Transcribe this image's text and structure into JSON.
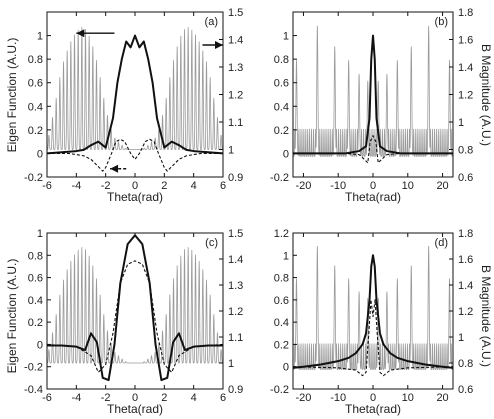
{
  "figure": {
    "ylabel_left": "Eigen Function (A.U.)",
    "ylabel_right": "B Magnitude (A.U.)"
  },
  "chart_data": [
    {
      "type": "line",
      "panel_label": "(a)",
      "xlabel": "Theta(rad)",
      "xlim": [
        -6,
        6
      ],
      "xticks": [
        -6,
        -4,
        -2,
        0,
        2,
        4,
        6
      ],
      "ylim_left": [
        -0.2,
        1.2
      ],
      "yticks_left": [
        -0.2,
        0,
        0.2,
        0.4,
        0.6,
        0.8,
        1
      ],
      "ylim_right": [
        0.9,
        1.5
      ],
      "yticks_right": [
        0.9,
        1,
        1.1,
        1.2,
        1.3,
        1.4,
        1.5
      ],
      "right_top_ticks_shown": false,
      "annotations": [
        {
          "type": "arrow",
          "from": [
            -1.4,
            1.02
          ],
          "to": [
            -4.0,
            1.02
          ],
          "axis": "left"
        },
        {
          "type": "arrow",
          "from": [
            4.6,
            1.38
          ],
          "to": [
            6.0,
            1.38
          ],
          "axis": "right"
        },
        {
          "type": "arrow",
          "from": [
            -0.6,
            -0.13
          ],
          "to": [
            -1.7,
            -0.13
          ],
          "axis": "left",
          "dashed": true
        }
      ],
      "series": [
        {
          "style": "solid",
          "axis": "left",
          "x": [
            -6,
            -5,
            -4,
            -3.5,
            -3,
            -2.5,
            -2,
            -1.5,
            -1.2,
            -0.9,
            -0.6,
            -0.3,
            0,
            0.3,
            0.6,
            0.9,
            1.2,
            1.5,
            2,
            2.5,
            3,
            3.5,
            4,
            5,
            6
          ],
          "y": [
            0.0,
            0.01,
            0.02,
            0.03,
            0.07,
            0.1,
            0.05,
            0.3,
            0.6,
            0.8,
            0.95,
            0.9,
            1.0,
            0.9,
            0.95,
            0.8,
            0.6,
            0.3,
            0.05,
            0.1,
            0.07,
            0.03,
            0.02,
            0.01,
            0.0
          ]
        },
        {
          "style": "dashed",
          "axis": "left",
          "x": [
            -6,
            -4.5,
            -3.5,
            -3,
            -2.6,
            -2.2,
            -2,
            -1.6,
            -1.3,
            -1,
            -0.7,
            -0.3,
            0,
            0.3,
            0.7,
            1,
            1.3,
            1.6,
            2,
            2.2,
            2.6,
            3,
            3.5,
            4.5,
            6
          ],
          "y": [
            0.0,
            0.0,
            -0.02,
            -0.05,
            -0.1,
            -0.15,
            -0.12,
            0.0,
            0.1,
            0.12,
            0.1,
            0.0,
            -0.05,
            0.0,
            0.1,
            0.12,
            0.1,
            0.0,
            -0.12,
            -0.15,
            -0.1,
            -0.05,
            -0.02,
            0.0,
            0.0
          ]
        },
        {
          "style": "gray-oscillating",
          "axis": "right",
          "period": 0.25,
          "baseline": 1.0,
          "envelope_x": [
            -6,
            -5.5,
            -5,
            -4.5,
            -4,
            -3.5,
            -3,
            -2.5,
            -2,
            -1.5,
            -1,
            -0.5,
            0,
            0.5,
            1,
            1.5,
            2,
            2.5,
            3,
            3.5,
            4,
            4.5,
            5,
            5.5,
            6
          ],
          "envelope_y": [
            1.02,
            1.15,
            1.3,
            1.38,
            1.43,
            1.45,
            1.4,
            1.3,
            1.15,
            1.05,
            1.02,
            1.0,
            1.0,
            1.0,
            1.02,
            1.05,
            1.15,
            1.3,
            1.4,
            1.45,
            1.43,
            1.38,
            1.3,
            1.15,
            1.02
          ]
        }
      ]
    },
    {
      "type": "line",
      "panel_label": "(b)",
      "xlabel": "Theta(rad)",
      "xlim": [
        -23,
        23
      ],
      "xticks": [
        -20,
        -10,
        0,
        10,
        20
      ],
      "ylim_left": [
        -0.2,
        1.2
      ],
      "yticks_left": [
        -0.2,
        0,
        0.2,
        0.4,
        0.6,
        0.8,
        1
      ],
      "ylim_right": [
        0.6,
        1.8
      ],
      "yticks_right": [
        0.6,
        0.8,
        1,
        1.2,
        1.4,
        1.6,
        1.8
      ],
      "series": [
        {
          "style": "solid",
          "axis": "left",
          "x": [
            -23,
            -15,
            -8,
            -4,
            -2,
            -1,
            -0.5,
            0,
            0.5,
            1,
            2,
            4,
            8,
            15,
            23
          ],
          "y": [
            0.0,
            0.0,
            0.0,
            0.02,
            0.06,
            0.3,
            0.8,
            1.0,
            0.8,
            0.3,
            0.06,
            0.02,
            0.0,
            0.0,
            0.0
          ]
        },
        {
          "style": "dashed",
          "axis": "left",
          "x": [
            -23,
            -8,
            -4,
            -2.5,
            -1.5,
            -0.8,
            0,
            0.8,
            1.5,
            2.5,
            4,
            8,
            23
          ],
          "y": [
            0.0,
            0.0,
            -0.01,
            -0.05,
            -0.08,
            0.1,
            0.15,
            0.1,
            -0.08,
            -0.05,
            -0.01,
            0.0,
            0.0
          ]
        },
        {
          "style": "gray-spiky",
          "axis": "right",
          "baseline": 0.75,
          "period": 0.6,
          "minor_peak": 0.95,
          "peaks_x": [
            -22,
            -16,
            -11,
            -7,
            -4,
            -1.5,
            1.5,
            4,
            7,
            11,
            16,
            22
          ],
          "peaks_y": [
            1.45,
            1.7,
            1.55,
            1.45,
            1.35,
            1.3,
            1.3,
            1.35,
            1.45,
            1.55,
            1.7,
            1.45
          ]
        }
      ]
    },
    {
      "type": "line",
      "panel_label": "(c)",
      "xlabel": "Theta(rad)",
      "xlim": [
        -6,
        6
      ],
      "xticks": [
        -6,
        -4,
        -2,
        0,
        2,
        4,
        6
      ],
      "ylim_left": [
        -0.4,
        1.0
      ],
      "yticks_left": [
        -0.4,
        -0.2,
        0,
        0.2,
        0.4,
        0.6,
        0.8,
        1
      ],
      "ylim_right": [
        0.9,
        1.5
      ],
      "yticks_right": [
        0.9,
        1,
        1.1,
        1.2,
        1.3,
        1.4,
        1.5
      ],
      "series": [
        {
          "style": "solid",
          "axis": "left",
          "x": [
            -6,
            -5,
            -4,
            -3.4,
            -3,
            -2.6,
            -2.2,
            -1.8,
            -1.4,
            -1,
            -0.5,
            0,
            0.5,
            1,
            1.4,
            1.8,
            2.2,
            2.6,
            3,
            3.4,
            4,
            5,
            6
          ],
          "y": [
            -0.01,
            -0.01,
            -0.02,
            -0.05,
            0.1,
            0.02,
            -0.3,
            -0.32,
            0.0,
            0.55,
            0.9,
            0.98,
            0.9,
            0.55,
            0.0,
            -0.32,
            -0.3,
            0.02,
            0.1,
            -0.05,
            -0.02,
            -0.01,
            -0.01
          ]
        },
        {
          "style": "dashed",
          "axis": "left",
          "x": [
            -6,
            -4,
            -3,
            -2.5,
            -2,
            -1.5,
            -1,
            -0.5,
            0,
            0.5,
            1,
            1.5,
            2,
            2.5,
            3,
            4,
            6
          ],
          "y": [
            0.0,
            -0.02,
            -0.1,
            -0.25,
            -0.18,
            0.1,
            0.55,
            0.72,
            0.75,
            0.72,
            0.55,
            0.1,
            -0.18,
            -0.25,
            -0.1,
            -0.02,
            0.0
          ]
        },
        {
          "style": "gray-oscillating",
          "axis": "right",
          "period": 0.25,
          "baseline": 1.0,
          "envelope_x": [
            -6,
            -5.5,
            -5,
            -4.5,
            -4,
            -3.5,
            -3,
            -2.5,
            -2,
            -1.5,
            -1,
            -0.5,
            0,
            0.5,
            1,
            1.5,
            2,
            2.5,
            3,
            3.5,
            4,
            4.5,
            5,
            5.5,
            6
          ],
          "envelope_y": [
            1.02,
            1.15,
            1.3,
            1.38,
            1.43,
            1.45,
            1.4,
            1.3,
            1.15,
            1.05,
            1.02,
            1.0,
            1.0,
            1.0,
            1.02,
            1.05,
            1.15,
            1.3,
            1.4,
            1.45,
            1.43,
            1.38,
            1.3,
            1.15,
            1.02
          ]
        }
      ]
    },
    {
      "type": "line",
      "panel_label": "(d)",
      "xlabel": "Theta(rad)",
      "xlim": [
        -23,
        23
      ],
      "xticks": [
        -20,
        -10,
        0,
        10,
        20
      ],
      "ylim_left": [
        -0.2,
        1.2
      ],
      "yticks_left": [
        -0.2,
        0,
        0.2,
        0.4,
        0.6,
        0.8,
        1,
        1.2
      ],
      "ylim_right": [
        0.6,
        1.8
      ],
      "yticks_right": [
        0.6,
        0.8,
        1,
        1.2,
        1.4,
        1.6,
        1.8
      ],
      "series": [
        {
          "style": "solid",
          "axis": "left",
          "x": [
            -23,
            -20,
            -15,
            -10,
            -7,
            -5,
            -3,
            -2,
            -1,
            -0.5,
            0,
            0.5,
            1,
            2,
            3,
            5,
            7,
            10,
            15,
            20,
            23
          ],
          "y": [
            -0.01,
            0.0,
            0.02,
            0.05,
            0.08,
            0.12,
            0.2,
            0.3,
            0.6,
            0.9,
            1.0,
            0.9,
            0.6,
            0.3,
            0.2,
            0.12,
            0.08,
            0.05,
            0.02,
            0.0,
            -0.01
          ]
        },
        {
          "style": "dashed",
          "axis": "left",
          "x": [
            -23,
            -10,
            -5,
            -3,
            -2,
            -1.2,
            -0.6,
            0,
            0.6,
            1.2,
            2,
            3,
            5,
            10,
            23
          ],
          "y": [
            0.0,
            -0.01,
            -0.03,
            -0.08,
            -0.05,
            0.3,
            0.6,
            0.45,
            0.6,
            0.3,
            -0.05,
            -0.08,
            -0.03,
            -0.01,
            0.0
          ]
        },
        {
          "style": "gray-spiky",
          "axis": "right",
          "baseline": 0.75,
          "period": 0.6,
          "minor_peak": 0.95,
          "peaks_x": [
            -22,
            -16,
            -11,
            -7,
            -4,
            -1.5,
            1.5,
            4,
            7,
            11,
            16,
            22
          ],
          "peaks_y": [
            1.45,
            1.7,
            1.55,
            1.45,
            1.35,
            1.3,
            1.3,
            1.35,
            1.45,
            1.55,
            1.7,
            1.45
          ]
        }
      ]
    }
  ]
}
